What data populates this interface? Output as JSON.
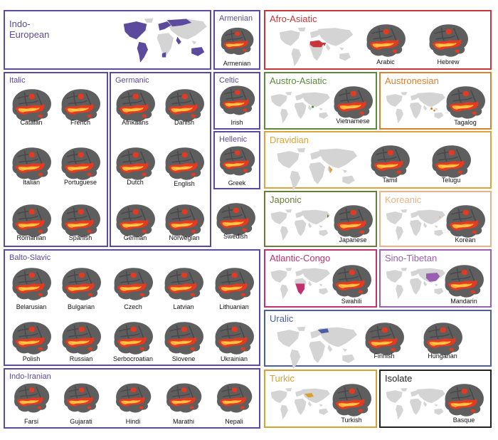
{
  "colors": {
    "indo_european": "#5b4a9e",
    "afro_asiatic": "#c8363c",
    "austro_asiatic": "#5c8a3a",
    "austronesian": "#d9812f",
    "dravidian": "#e0a23a",
    "japonic": "#6b7d3a",
    "koreanic": "#e8b38a",
    "atlantic_congo": "#c2306f",
    "sino_tibetan": "#9a5fb0",
    "uralic": "#4a5fa8",
    "turkic": "#d8a030",
    "isolate": "#222222",
    "land": "#d4d4d4",
    "brain": "#5e5e5e",
    "activation_red": "#e33a22",
    "activation_yellow": "#ffd54a"
  },
  "families": {
    "indo_european": "Indo-\nEuropean",
    "armenian": "Armenian",
    "italic": "Italic",
    "germanic": "Germanic",
    "celtic": "Celtic",
    "hellenic": "Hellenic",
    "balto_slavic": "Balto-Slavic",
    "indo_iranian": "Indo-Iranian",
    "afro_asiatic": "Afro-Asiatic",
    "austro_asiatic": "Austro-Asiatic",
    "austronesian": "Austronesian",
    "dravidian": "Dravidian",
    "japonic": "Japonic",
    "koreanic": "Koreanic",
    "atlantic_congo": "Atlantic-Congo",
    "sino_tibetan": "Sino-Tibetan",
    "uralic": "Uralic",
    "turkic": "Turkic",
    "isolate": "Isolate"
  },
  "languages": {
    "armenian": "Armenian",
    "catalan": "Catalan",
    "french": "French",
    "italian": "Italian",
    "portuguese": "Portuguese",
    "romanian": "Romanian",
    "spanish": "Spanish",
    "afrikaans": "Afrikaans",
    "danish": "Danish",
    "dutch": "Dutch",
    "english": "English",
    "german": "German",
    "norwegian": "Norwegian",
    "swedish": "Swedish",
    "irish": "Irish",
    "greek": "Greek",
    "belarusian": "Belarusian",
    "bulgarian": "Bulgarian",
    "czech": "Czech",
    "latvian": "Latvian",
    "lithuanian": "Lithuanian",
    "polish": "Polish",
    "russian": "Russian",
    "serbocroatian": "Serbocroatian",
    "slovene": "Slovene",
    "ukrainian": "Ukrainian",
    "farsi": "Farsi",
    "gujarati": "Gujarati",
    "hindi": "Hindi",
    "marathi": "Marathi",
    "nepali": "Nepali",
    "arabic": "Arabic",
    "hebrew": "Hebrew",
    "vietnamese": "Vietnamese",
    "tagalog": "Tagalog",
    "tamil": "Tamil",
    "telugu": "Telugu",
    "japanese": "Japanese",
    "korean": "Korean",
    "swahili": "Swahili",
    "mandarin": "Mandarin",
    "finnish": "Finnish",
    "hungarian": "Hungarian",
    "turkish": "Turkish",
    "basque": "Basque"
  }
}
